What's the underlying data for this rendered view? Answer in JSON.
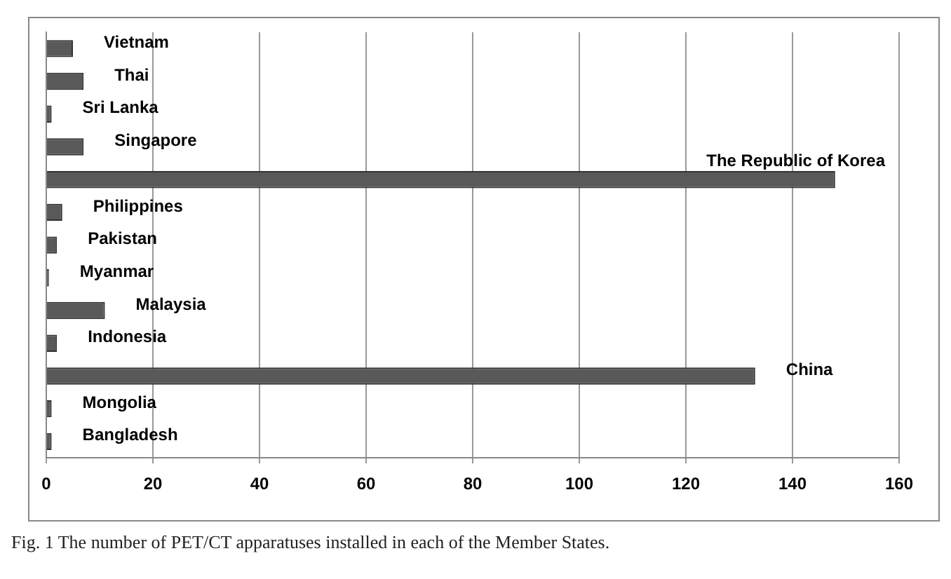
{
  "chart_data": {
    "type": "bar",
    "orientation": "horizontal",
    "categories": [
      "Vietnam",
      "Thai",
      "Sri Lanka",
      "Singapore",
      "The Republic of Korea",
      "Philippines",
      "Pakistan",
      "Myanmar",
      "Malaysia",
      "Indonesia",
      "China",
      "Mongolia",
      "Bangladesh"
    ],
    "values": [
      5,
      7,
      1,
      7,
      148,
      3,
      2,
      0.5,
      11,
      2,
      133,
      1,
      1
    ],
    "color": "#595959",
    "xlim": [
      0,
      160
    ],
    "xticks": [
      0,
      20,
      40,
      60,
      80,
      100,
      120,
      140,
      160
    ],
    "grid": "x",
    "annotations": [
      "Fig. 1  The number of PET/CT apparatuses installed in each of the Member States."
    ]
  }
}
